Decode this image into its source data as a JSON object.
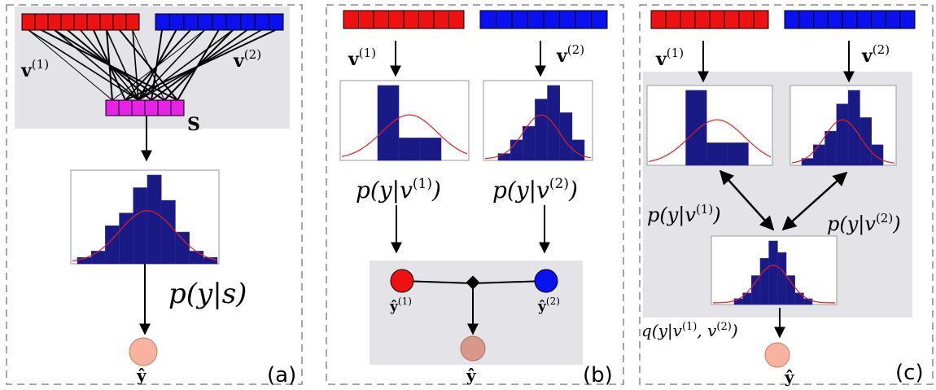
{
  "colors": {
    "red": "#ee1111",
    "blue": "#0a10f0",
    "magenta": "#e622e6",
    "gray_bg": "#e3e3e8",
    "hist_bar": "#1a1a86",
    "curve": "#e61e1e",
    "node_a": "#f7b3a0",
    "node_b": "#d9968a",
    "node_c": "#f7b3a0"
  },
  "panels": {
    "a": {
      "tag": "(a)",
      "v1": "v",
      "v1_sup": "(1)",
      "v2": "v",
      "v2_sup": "(2)",
      "s": "S",
      "prob": "p(y|s)",
      "yhat": "ŷ",
      "hist": [
        1,
        2,
        6,
        8,
        12,
        14,
        10,
        5,
        2,
        1
      ]
    },
    "b": {
      "tag": "(b)",
      "v1": "v",
      "v1_sup": "(1)",
      "v2": "v",
      "v2_sup": "(2)",
      "p1": "p(y|v",
      "p1_sup": "(1)",
      "p2": "p(y|v",
      "p2_sup": "(2)",
      "close": ")",
      "y1": "ŷ",
      "y1_sup": "(1)",
      "y2": "ŷ",
      "y2_sup": "(2)",
      "yhat": "ŷ",
      "hist1": [
        0,
        10,
        3,
        3,
        0
      ],
      "hist2": [
        1,
        3,
        5,
        9,
        11,
        7,
        3
      ]
    },
    "c": {
      "tag": "(c)",
      "v1": "v",
      "v1_sup": "(1)",
      "v2": "v",
      "v2_sup": "(2)",
      "p1": "p(y|v",
      "p1_sup": "(1)",
      "p2": "p(y|v",
      "p2_sup": "(2)",
      "close": ")",
      "q": "q(y|v",
      "q_sup1": "(1)",
      "q_mid": ", v",
      "q_sup2": "(2)",
      "yhat": "ŷ",
      "hist1": [
        0,
        10,
        3,
        3,
        0
      ],
      "hist2": [
        1,
        3,
        5,
        9,
        11,
        7,
        3
      ],
      "hist3": [
        1,
        2,
        5,
        8,
        11,
        9,
        5,
        2,
        1
      ]
    }
  }
}
